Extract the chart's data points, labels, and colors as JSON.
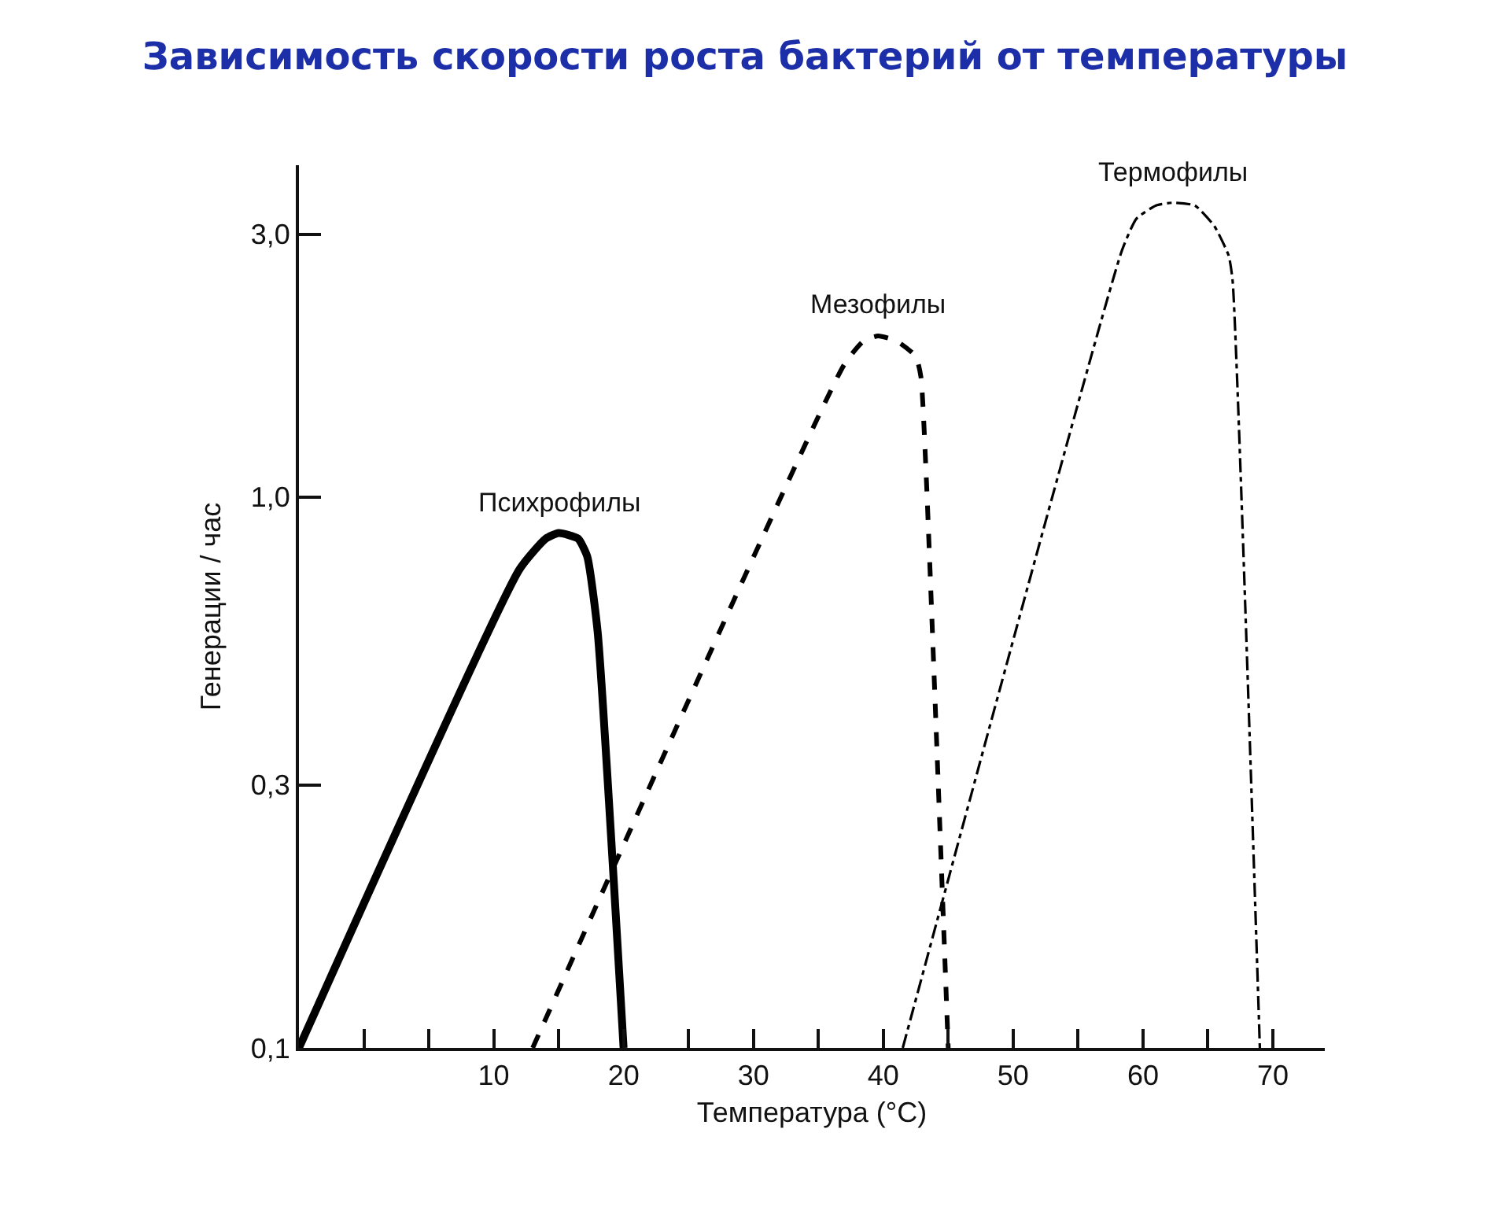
{
  "chart_data": {
    "type": "line",
    "title": "Зависимость скорости роста бактерий от температуры",
    "xlabel": "Температура (°C)",
    "ylabel": "Генерации / час",
    "log": "y",
    "grid": false,
    "legend": false,
    "marker": "none",
    "xlim": [
      -5,
      74
    ],
    "ylim": [
      0.1,
      4
    ],
    "xticks": [
      {
        "value": 0,
        "label": null
      },
      {
        "value": 5,
        "label": null
      },
      10,
      {
        "value": 15,
        "label": null
      },
      20,
      {
        "value": 25,
        "label": null
      },
      30,
      {
        "value": 35,
        "label": null
      },
      40,
      {
        "value": 45,
        "label": null
      },
      50,
      {
        "value": 55,
        "label": null
      },
      60,
      {
        "value": 65,
        "label": null
      },
      70
    ],
    "yticks": [
      {
        "value": 0.1,
        "label": "0,1"
      },
      {
        "value": 0.3,
        "label": "0,3"
      },
      {
        "value": 1.0,
        "label": "1,0"
      },
      {
        "value": 3.0,
        "label": "3,0"
      }
    ],
    "series": [
      {
        "name": "Психрофилы",
        "color": "#000000",
        "line_style": "solid",
        "x": [
          -5,
          12,
          14,
          15,
          16.5,
          17.2,
          18,
          20
        ],
        "values": [
          0.1,
          0.74,
          0.84,
          0.86,
          0.84,
          0.78,
          0.57,
          0.1
        ]
      },
      {
        "name": "Мезофилы",
        "color": "#000000",
        "line_style": "dashed",
        "x": [
          13,
          37,
          38.5,
          39.6,
          41,
          42.5,
          42.9,
          43.3,
          45
        ],
        "values": [
          0.1,
          1.74,
          1.92,
          1.96,
          1.92,
          1.8,
          1.65,
          1.1,
          0.1
        ]
      },
      {
        "name": "Термофилы",
        "color": "#000000",
        "line_style": "dashdot",
        "x": [
          41.5,
          58.4,
          59.5,
          61,
          62.3,
          64,
          65.5,
          66.6,
          66.9,
          69
        ],
        "values": [
          0.1,
          2.81,
          3.2,
          3.38,
          3.42,
          3.38,
          3.1,
          2.74,
          2.47,
          0.1
        ]
      }
    ]
  }
}
